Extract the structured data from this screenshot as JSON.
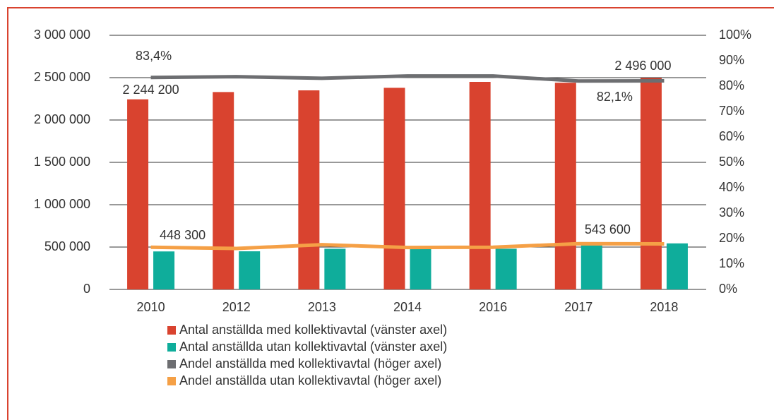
{
  "chart_data": {
    "type": "bar_line",
    "categories": [
      "2010",
      "2012",
      "2013",
      "2014",
      "2016",
      "2017",
      "2018"
    ],
    "series": [
      {
        "name": "Antal anställda med kollektivavtal (vänster axel)",
        "type": "bar",
        "color": "#d9432f",
        "values": [
          2244200,
          2330000,
          2350000,
          2380000,
          2450000,
          2440000,
          2496000
        ],
        "value_labels": [
          "2 244 200",
          null,
          null,
          null,
          null,
          null,
          "2 496 000"
        ]
      },
      {
        "name": "Antal anställda utan kollektivavtal (vänster axel)",
        "type": "bar",
        "color": "#0fad9b",
        "values": [
          448300,
          450000,
          480000,
          480000,
          480000,
          520000,
          543600
        ],
        "value_labels": [
          "448 300",
          null,
          null,
          null,
          null,
          null,
          "543 600"
        ]
      },
      {
        "name": "Andel anställda med kollektivavtal (höger axel)",
        "type": "line",
        "axis": "y2",
        "color": "#6d6e71",
        "values": [
          83.4,
          83.7,
          83.1,
          84.0,
          84.0,
          82.0,
          82.1
        ],
        "value_labels": [
          "83,4%",
          null,
          null,
          null,
          null,
          null,
          "82,1%"
        ]
      },
      {
        "name": "Andel anställda utan kollektivavtal (höger axel)",
        "type": "line",
        "axis": "y2",
        "color": "#f5a046",
        "values": [
          16.6,
          16.1,
          17.6,
          16.5,
          16.6,
          18.0,
          17.9
        ]
      }
    ],
    "ylim": [
      0,
      3000000
    ],
    "yticks": [
      0,
      {
        "value": 500000,
        "label": "500 000"
      },
      {
        "value": 1000000,
        "label": "1 000 000"
      },
      {
        "value": 1500000,
        "label": "1 500 000"
      },
      {
        "value": 2000000,
        "label": "2 000 000"
      },
      {
        "value": 2500000,
        "label": "2 500 000"
      },
      {
        "value": 3000000,
        "label": "3 000 000"
      }
    ],
    "y2lim": [
      0,
      100
    ],
    "y2ticks": [
      {
        "value": 0,
        "label": "0%"
      },
      {
        "value": 10,
        "label": "10%"
      },
      {
        "value": 20,
        "label": "20%"
      },
      {
        "value": 30,
        "label": "30%"
      },
      {
        "value": 40,
        "label": "40%"
      },
      {
        "value": 50,
        "label": "50%"
      },
      {
        "value": 60,
        "label": "60%"
      },
      {
        "value": 70,
        "label": "70%"
      },
      {
        "value": 80,
        "label": "80%"
      },
      {
        "value": 90,
        "label": "90%"
      },
      {
        "value": 100,
        "label": "100%"
      }
    ],
    "grid": true
  }
}
